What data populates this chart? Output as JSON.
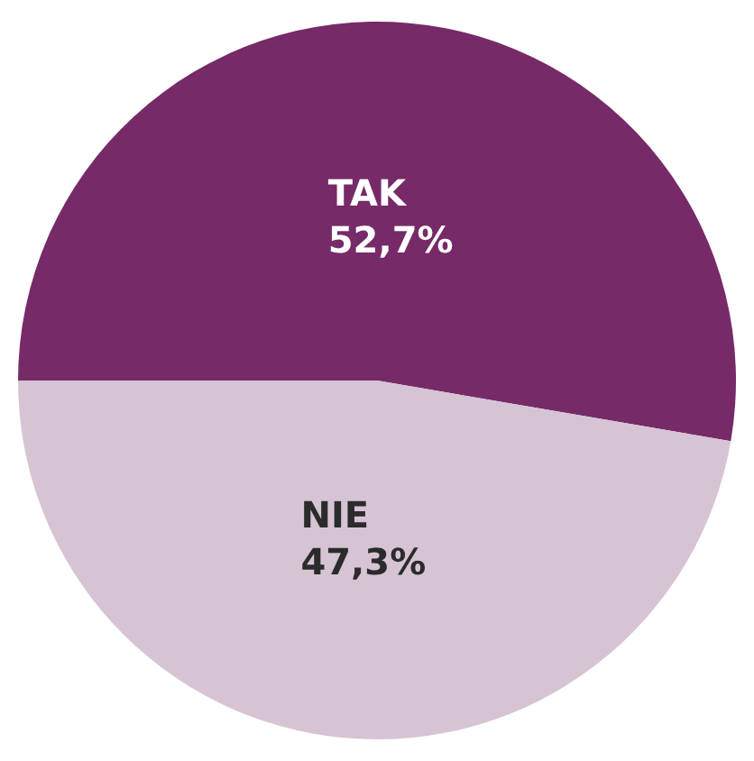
{
  "chart_data": {
    "type": "pie",
    "categories": [
      "TAK",
      "NIE"
    ],
    "values": [
      52.7,
      47.3
    ],
    "colors": [
      "#762a67",
      "#d6c4d4"
    ],
    "value_labels": [
      "52,7%",
      "47,3%"
    ],
    "legend": false
  }
}
